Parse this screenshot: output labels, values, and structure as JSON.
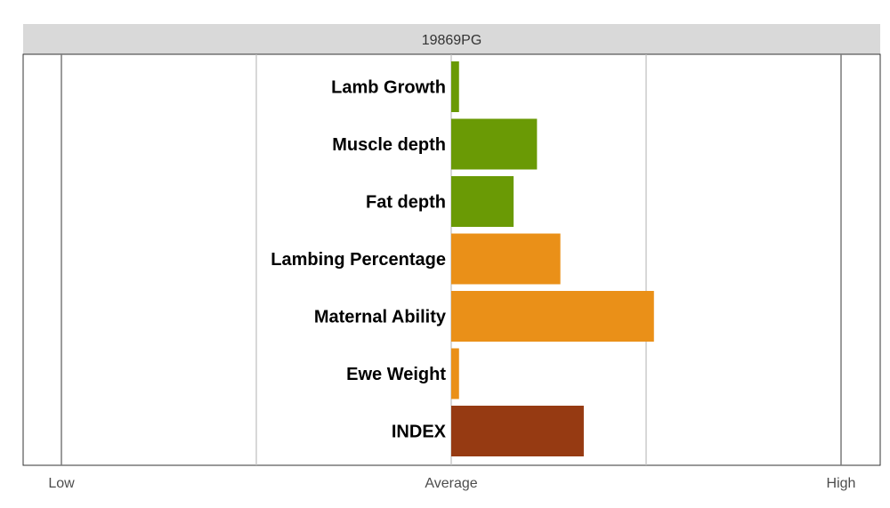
{
  "chart_data": {
    "type": "bar",
    "orientation": "horizontal",
    "title": "19869PG",
    "categories": [
      "Lamb Growth",
      "Muscle depth",
      "Fat depth",
      "Lambing Percentage",
      "Maternal Ability",
      "Ewe Weight",
      "INDEX"
    ],
    "values": [
      0.02,
      0.22,
      0.16,
      0.28,
      0.52,
      0.02,
      0.34
    ],
    "colors": [
      "#6a9a05",
      "#6a9a05",
      "#6a9a05",
      "#ea9018",
      "#ea9018",
      "#ea9018",
      "#963a12"
    ],
    "xlim": [
      -1,
      1
    ],
    "x_ticks": [
      {
        "value": -1,
        "label": "Low"
      },
      {
        "value": 0,
        "label": "Average"
      },
      {
        "value": 1,
        "label": "High"
      }
    ],
    "minor_gridlines": [
      -0.5,
      0.5
    ],
    "grid": true,
    "legend": "none"
  }
}
